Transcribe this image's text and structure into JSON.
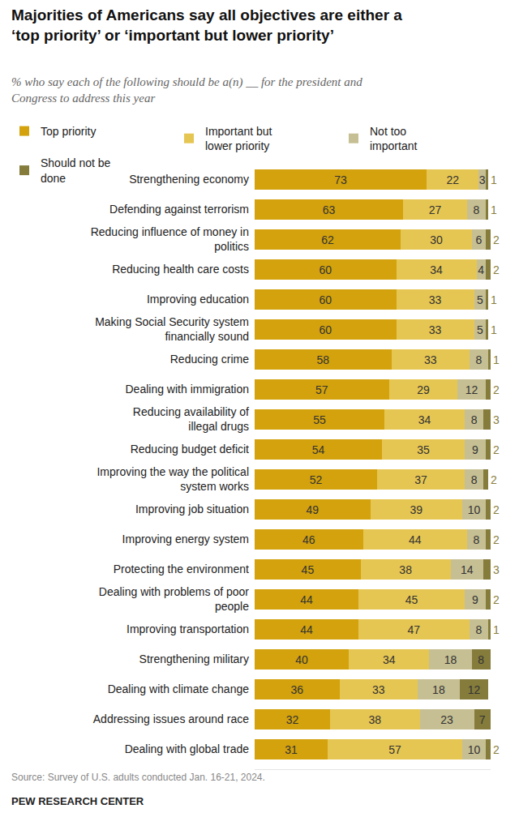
{
  "chart_data": {
    "type": "bar",
    "title": "Majorities of Americans say all objectives are either a ‘top priority’ or ‘important but lower priority’",
    "subtitle": "% who say each of the following should be a(n) __ for the president and Congress to address this year",
    "categories": [
      "Strengthening economy",
      "Defending against terrorism",
      "Reducing influence of money in politics",
      "Reducing health care costs",
      "Improving education",
      "Making Social Security system financially sound",
      "Reducing crime",
      "Dealing with immigration",
      "Reducing availability of illegal drugs",
      "Reducing budget deficit",
      "Improving the way the political system works",
      "Improving job situation",
      "Improving energy system",
      "Protecting the environment",
      "Dealing with problems of poor people",
      "Improving transportation",
      "Strengthening military",
      "Dealing with climate change",
      "Addressing issues around race",
      "Dealing with global trade"
    ],
    "series": [
      {
        "name": "Top priority",
        "color": "#d3a20c",
        "values": [
          73,
          63,
          62,
          60,
          60,
          60,
          58,
          57,
          55,
          54,
          52,
          49,
          46,
          45,
          44,
          44,
          40,
          36,
          32,
          31
        ]
      },
      {
        "name": "Important but lower priority",
        "color": "#e6c652",
        "values": [
          22,
          27,
          30,
          34,
          33,
          33,
          33,
          29,
          34,
          35,
          37,
          39,
          44,
          38,
          45,
          47,
          34,
          33,
          38,
          57
        ]
      },
      {
        "name": "Not too important",
        "color": "#c6bf93",
        "values": [
          3,
          8,
          6,
          4,
          5,
          5,
          8,
          12,
          8,
          9,
          8,
          10,
          8,
          14,
          9,
          8,
          18,
          18,
          23,
          10
        ]
      },
      {
        "name": "Should not be done",
        "color": "#857c3c",
        "values": [
          1,
          1,
          2,
          2,
          1,
          1,
          1,
          2,
          3,
          2,
          2,
          2,
          2,
          3,
          2,
          1,
          8,
          12,
          7,
          2
        ]
      }
    ],
    "xlim": [
      0,
      100
    ],
    "orientation": "horizontal",
    "stacked": true,
    "data_labels": true,
    "tick_labels": "y",
    "legend": "top",
    "annotations": [
      "Source: Survey of U.S. adults conducted Jan. 16-21, 2024.",
      "PEW RESEARCH CENTER"
    ]
  }
}
